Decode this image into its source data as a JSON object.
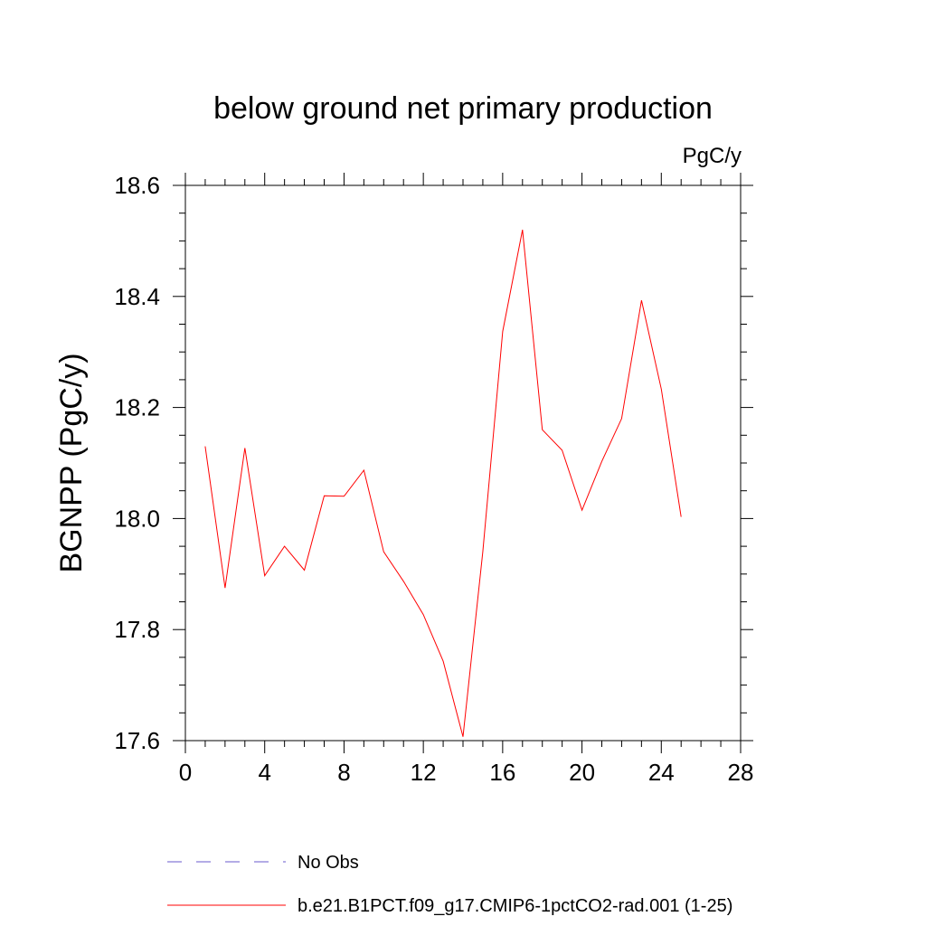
{
  "chart_data": {
    "type": "line",
    "title": "below ground net primary production",
    "units": "PgC/y",
    "ylabel": "BGNPP  (PgC/y)",
    "xlabel": "",
    "xlim": [
      0,
      28
    ],
    "ylim": [
      17.6,
      18.6
    ],
    "x_ticks": [
      0,
      4,
      8,
      12,
      16,
      20,
      24,
      28
    ],
    "x_tick_labels": [
      "0",
      "4",
      "8",
      "12",
      "16",
      "20",
      "24",
      "28"
    ],
    "y_ticks": [
      17.6,
      17.8,
      18.0,
      18.2,
      18.4,
      18.6
    ],
    "y_tick_labels": [
      "17.6",
      "17.8",
      "18.0",
      "18.2",
      "18.4",
      "18.6"
    ],
    "grid": false,
    "legend_position": "bottom",
    "series": [
      {
        "name": "b.e21.B1PCT.f09_g17.CMIP6-1pctCO2-rad.001 (1-25)",
        "color": "#ff0000",
        "style": "solid",
        "x": [
          1,
          2,
          3,
          4,
          5,
          6,
          7,
          8,
          9,
          10,
          11,
          12,
          13,
          14,
          15,
          16,
          17,
          18,
          19,
          20,
          21,
          22,
          23,
          24,
          25
        ],
        "y": [
          18.13,
          17.875,
          18.127,
          17.897,
          17.95,
          17.907,
          18.041,
          18.04,
          18.087,
          17.94,
          17.887,
          17.827,
          17.743,
          17.607,
          17.94,
          18.337,
          18.52,
          18.16,
          18.123,
          18.015,
          18.103,
          18.18,
          18.393,
          18.233,
          18.003
        ]
      }
    ],
    "legend": [
      {
        "label": "No Obs",
        "color": "#6a5acd",
        "style": "dashed"
      },
      {
        "label": "b.e21.B1PCT.f09_g17.CMIP6-1pctCO2-rad.001 (1-25)",
        "color": "#ff0000",
        "style": "solid"
      }
    ]
  }
}
